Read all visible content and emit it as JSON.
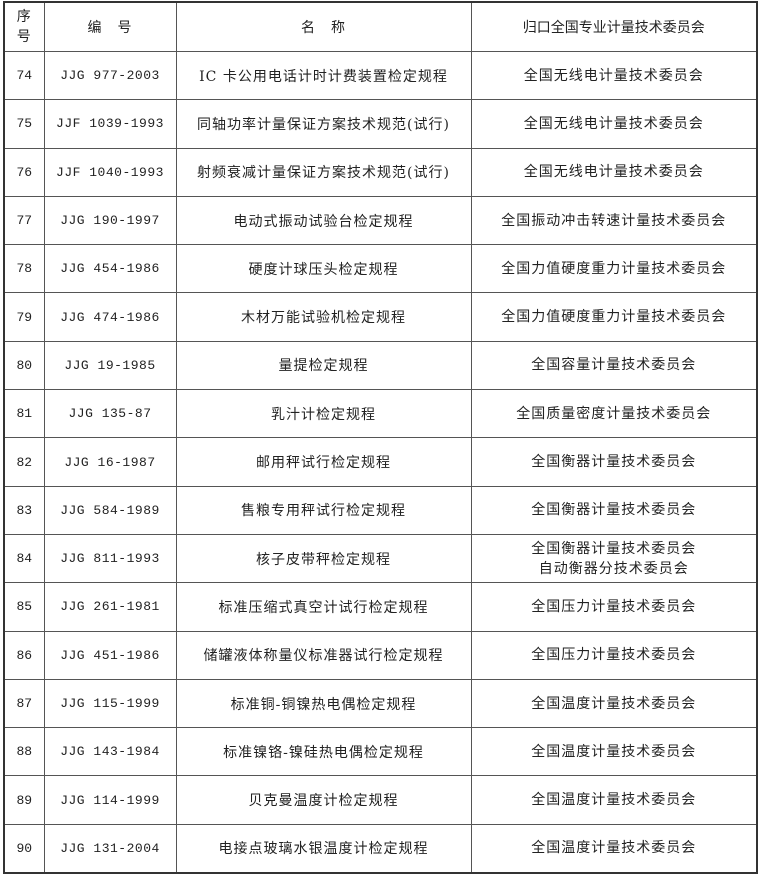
{
  "headers": {
    "seq": "序号",
    "seq_line1": "序",
    "seq_line2": "号",
    "code": "编　号",
    "name": "名　称",
    "committee": "归口全国专业计量技术委员会"
  },
  "rows": [
    {
      "seq": "74",
      "code": "JJG 977-2003",
      "name": "IC 卡公用电话计时计费装置检定规程",
      "committee": [
        "全国无线电计量技术委员会"
      ]
    },
    {
      "seq": "75",
      "code": "JJF 1039-1993",
      "name": "同轴功率计量保证方案技术规范(试行)",
      "committee": [
        "全国无线电计量技术委员会"
      ]
    },
    {
      "seq": "76",
      "code": "JJF 1040-1993",
      "name": "射频衰减计量保证方案技术规范(试行)",
      "committee": [
        "全国无线电计量技术委员会"
      ]
    },
    {
      "seq": "77",
      "code": "JJG 190-1997",
      "name": "电动式振动试验台检定规程",
      "committee": [
        "全国振动冲击转速计量技术委员会"
      ]
    },
    {
      "seq": "78",
      "code": "JJG 454-1986",
      "name": "硬度计球压头检定规程",
      "committee": [
        "全国力值硬度重力计量技术委员会"
      ]
    },
    {
      "seq": "79",
      "code": "JJG 474-1986",
      "name": "木材万能试验机检定规程",
      "committee": [
        "全国力值硬度重力计量技术委员会"
      ]
    },
    {
      "seq": "80",
      "code": "JJG 19-1985",
      "name": "量提检定规程",
      "committee": [
        "全国容量计量技术委员会"
      ]
    },
    {
      "seq": "81",
      "code": "JJG 135-87",
      "name": "乳汁计检定规程",
      "committee": [
        "全国质量密度计量技术委员会"
      ]
    },
    {
      "seq": "82",
      "code": "JJG 16-1987",
      "name": "邮用秤试行检定规程",
      "committee": [
        "全国衡器计量技术委员会"
      ]
    },
    {
      "seq": "83",
      "code": "JJG 584-1989",
      "name": "售粮专用秤试行检定规程",
      "committee": [
        "全国衡器计量技术委员会"
      ]
    },
    {
      "seq": "84",
      "code": "JJG 811-1993",
      "name": "核子皮带秤检定规程",
      "committee": [
        "全国衡器计量技术委员会",
        "自动衡器分技术委员会"
      ]
    },
    {
      "seq": "85",
      "code": "JJG 261-1981",
      "name": "标准压缩式真空计试行检定规程",
      "committee": [
        "全国压力计量技术委员会"
      ]
    },
    {
      "seq": "86",
      "code": "JJG 451-1986",
      "name": "储罐液体称量仪标准器试行检定规程",
      "committee": [
        "全国压力计量技术委员会"
      ]
    },
    {
      "seq": "87",
      "code": "JJG 115-1999",
      "name": "标准铜-铜镍热电偶检定规程",
      "committee": [
        "全国温度计量技术委员会"
      ]
    },
    {
      "seq": "88",
      "code": "JJG 143-1984",
      "name": "标准镍铬-镍硅热电偶检定规程",
      "committee": [
        "全国温度计量技术委员会"
      ]
    },
    {
      "seq": "89",
      "code": "JJG 114-1999",
      "name": "贝克曼温度计检定规程",
      "committee": [
        "全国温度计量技术委员会"
      ]
    },
    {
      "seq": "90",
      "code": "JJG 131-2004",
      "name": "电接点玻璃水银温度计检定规程",
      "committee": [
        "全国温度计量技术委员会"
      ]
    }
  ]
}
